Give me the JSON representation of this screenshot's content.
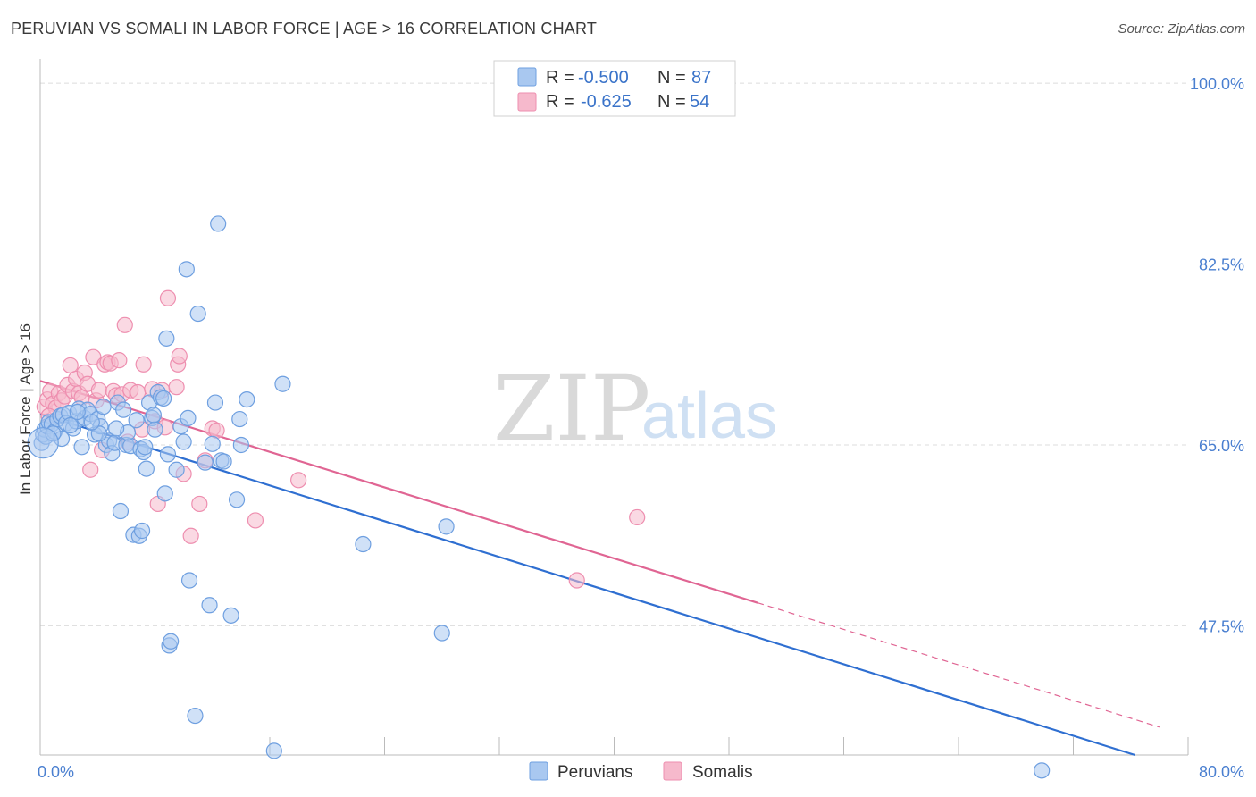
{
  "title": "PERUVIAN VS SOMALI IN LABOR FORCE | AGE > 16 CORRELATION CHART",
  "source": "Source: ZipAtlas.com",
  "watermark": {
    "zip": "ZIP",
    "atlas": "atlas"
  },
  "colors": {
    "peruvian_fill": "#a9c8f0",
    "peruvian_stroke": "#6e9fe0",
    "peruvian_line": "#2f6fd1",
    "somali_fill": "#f6b9cc",
    "somali_stroke": "#ee8eaf",
    "somali_line": "#e06593",
    "tick_text": "#4a7fd0"
  },
  "legend": {
    "rows": [
      {
        "r_label": "R =",
        "r_value": "-0.500",
        "n_label": "N =",
        "n_value": "87"
      },
      {
        "r_label": "R =",
        "r_value": "-0.625",
        "n_label": "N =",
        "n_value": "54"
      }
    ]
  },
  "chart_data": {
    "type": "scatter",
    "title": "PERUVIAN VS SOMALI IN LABOR FORCE | AGE > 16 CORRELATION CHART",
    "xlabel": "",
    "ylabel": "In Labor Force | Age > 16",
    "xlim": [
      0,
      80
    ],
    "ylim": [
      35,
      102
    ],
    "x_tick_labels": [
      "0.0%",
      "80.0%"
    ],
    "y_ticks": [
      100,
      82.5,
      65,
      47.5
    ],
    "y_tick_labels": [
      "100.0%",
      "82.5%",
      "65.0%",
      "47.5%"
    ],
    "grid": true,
    "legend_position": "top-center",
    "series": [
      {
        "name": "Peruvians",
        "r": -0.5,
        "n": 87,
        "trend": {
          "x0": 0,
          "y0": 68.0,
          "x1": 76.3,
          "y1": 35.0,
          "dashed_from": null
        },
        "points": [
          [
            0.1,
            65.2
          ],
          [
            0.2,
            66.0
          ],
          [
            0.3,
            66.5
          ],
          [
            0.4,
            65.8
          ],
          [
            0.5,
            66.8
          ],
          [
            0.6,
            67.2
          ],
          [
            0.8,
            67.0
          ],
          [
            1.0,
            66.3
          ],
          [
            1.2,
            67.5
          ],
          [
            1.4,
            67.8
          ],
          [
            1.6,
            67.9
          ],
          [
            1.8,
            67.1
          ],
          [
            2.0,
            68.1
          ],
          [
            2.3,
            66.6
          ],
          [
            2.5,
            67.3
          ],
          [
            2.7,
            68.5
          ],
          [
            2.9,
            64.8
          ],
          [
            3.1,
            67.6
          ],
          [
            3.3,
            68.4
          ],
          [
            3.5,
            68.0
          ],
          [
            3.8,
            66.0
          ],
          [
            4.0,
            67.5
          ],
          [
            4.2,
            66.8
          ],
          [
            4.4,
            68.7
          ],
          [
            4.6,
            65.0
          ],
          [
            4.8,
            65.4
          ],
          [
            5.0,
            64.2
          ],
          [
            5.2,
            65.2
          ],
          [
            5.4,
            69.1
          ],
          [
            5.6,
            58.6
          ],
          [
            5.8,
            68.4
          ],
          [
            6.0,
            65.0
          ],
          [
            6.3,
            64.9
          ],
          [
            6.5,
            56.3
          ],
          [
            6.7,
            67.4
          ],
          [
            6.9,
            56.2
          ],
          [
            7.0,
            64.6
          ],
          [
            7.1,
            56.7
          ],
          [
            7.2,
            64.3
          ],
          [
            7.3,
            64.8
          ],
          [
            7.4,
            62.7
          ],
          [
            7.6,
            69.1
          ],
          [
            7.8,
            67.6
          ],
          [
            8.0,
            66.5
          ],
          [
            8.2,
            70.1
          ],
          [
            8.4,
            69.6
          ],
          [
            8.6,
            69.5
          ],
          [
            8.7,
            60.3
          ],
          [
            8.8,
            75.3
          ],
          [
            9.0,
            45.6
          ],
          [
            9.1,
            46.0
          ],
          [
            9.5,
            62.6
          ],
          [
            9.8,
            66.8
          ],
          [
            10.0,
            65.3
          ],
          [
            10.2,
            82.0
          ],
          [
            10.3,
            67.6
          ],
          [
            10.4,
            51.9
          ],
          [
            10.8,
            38.8
          ],
          [
            11.0,
            77.7
          ],
          [
            11.5,
            63.3
          ],
          [
            11.8,
            49.5
          ],
          [
            12.0,
            65.1
          ],
          [
            12.2,
            69.1
          ],
          [
            12.4,
            86.4
          ],
          [
            12.6,
            63.5
          ],
          [
            12.8,
            63.4
          ],
          [
            13.3,
            48.5
          ],
          [
            13.7,
            59.7
          ],
          [
            13.9,
            67.5
          ],
          [
            14.0,
            65.0
          ],
          [
            14.4,
            69.4
          ],
          [
            16.3,
            35.4
          ],
          [
            16.9,
            70.9
          ],
          [
            22.5,
            55.4
          ],
          [
            28.0,
            46.8
          ],
          [
            28.3,
            57.1
          ],
          [
            69.8,
            33.5
          ],
          [
            4.1,
            66.1
          ],
          [
            2.1,
            66.9
          ],
          [
            1.5,
            65.6
          ],
          [
            3.6,
            67.2
          ],
          [
            6.1,
            66.2
          ],
          [
            8.9,
            64.1
          ],
          [
            0.9,
            66.1
          ],
          [
            5.3,
            66.6
          ],
          [
            7.9,
            67.9
          ],
          [
            2.6,
            68.2
          ]
        ]
      },
      {
        "name": "Somalis",
        "r": -0.625,
        "n": 54,
        "trend": {
          "x0": 0,
          "y0": 71.2,
          "x1": 78,
          "y1": 37.7,
          "dashed_from": 50
        },
        "points": [
          [
            0.3,
            68.7
          ],
          [
            0.5,
            69.4
          ],
          [
            0.7,
            70.2
          ],
          [
            0.9,
            69.0
          ],
          [
            1.1,
            68.6
          ],
          [
            1.3,
            70.0
          ],
          [
            1.5,
            69.3
          ],
          [
            1.7,
            69.7
          ],
          [
            1.9,
            70.8
          ],
          [
            2.1,
            72.7
          ],
          [
            2.3,
            70.2
          ],
          [
            2.5,
            71.4
          ],
          [
            2.7,
            70.0
          ],
          [
            2.9,
            69.6
          ],
          [
            3.1,
            72.0
          ],
          [
            3.3,
            70.9
          ],
          [
            3.5,
            62.6
          ],
          [
            3.7,
            73.5
          ],
          [
            3.9,
            69.3
          ],
          [
            4.1,
            70.3
          ],
          [
            4.3,
            64.5
          ],
          [
            4.5,
            72.8
          ],
          [
            4.7,
            73.0
          ],
          [
            4.9,
            72.9
          ],
          [
            5.1,
            70.2
          ],
          [
            5.3,
            69.8
          ],
          [
            5.5,
            73.2
          ],
          [
            5.7,
            69.9
          ],
          [
            5.9,
            76.6
          ],
          [
            6.1,
            65.3
          ],
          [
            6.3,
            70.3
          ],
          [
            6.8,
            70.1
          ],
          [
            7.1,
            66.5
          ],
          [
            7.2,
            72.8
          ],
          [
            7.8,
            70.4
          ],
          [
            8.0,
            67.3
          ],
          [
            8.2,
            59.3
          ],
          [
            8.5,
            70.3
          ],
          [
            8.7,
            66.7
          ],
          [
            8.9,
            79.2
          ],
          [
            9.5,
            70.6
          ],
          [
            9.6,
            72.8
          ],
          [
            9.7,
            73.6
          ],
          [
            10.0,
            62.2
          ],
          [
            10.5,
            56.2
          ],
          [
            11.1,
            59.3
          ],
          [
            11.5,
            63.5
          ],
          [
            12.0,
            66.6
          ],
          [
            12.3,
            66.4
          ],
          [
            15.0,
            57.7
          ],
          [
            18.0,
            61.6
          ],
          [
            37.4,
            51.9
          ],
          [
            41.6,
            58.0
          ],
          [
            0.6,
            67.8
          ]
        ]
      }
    ]
  }
}
